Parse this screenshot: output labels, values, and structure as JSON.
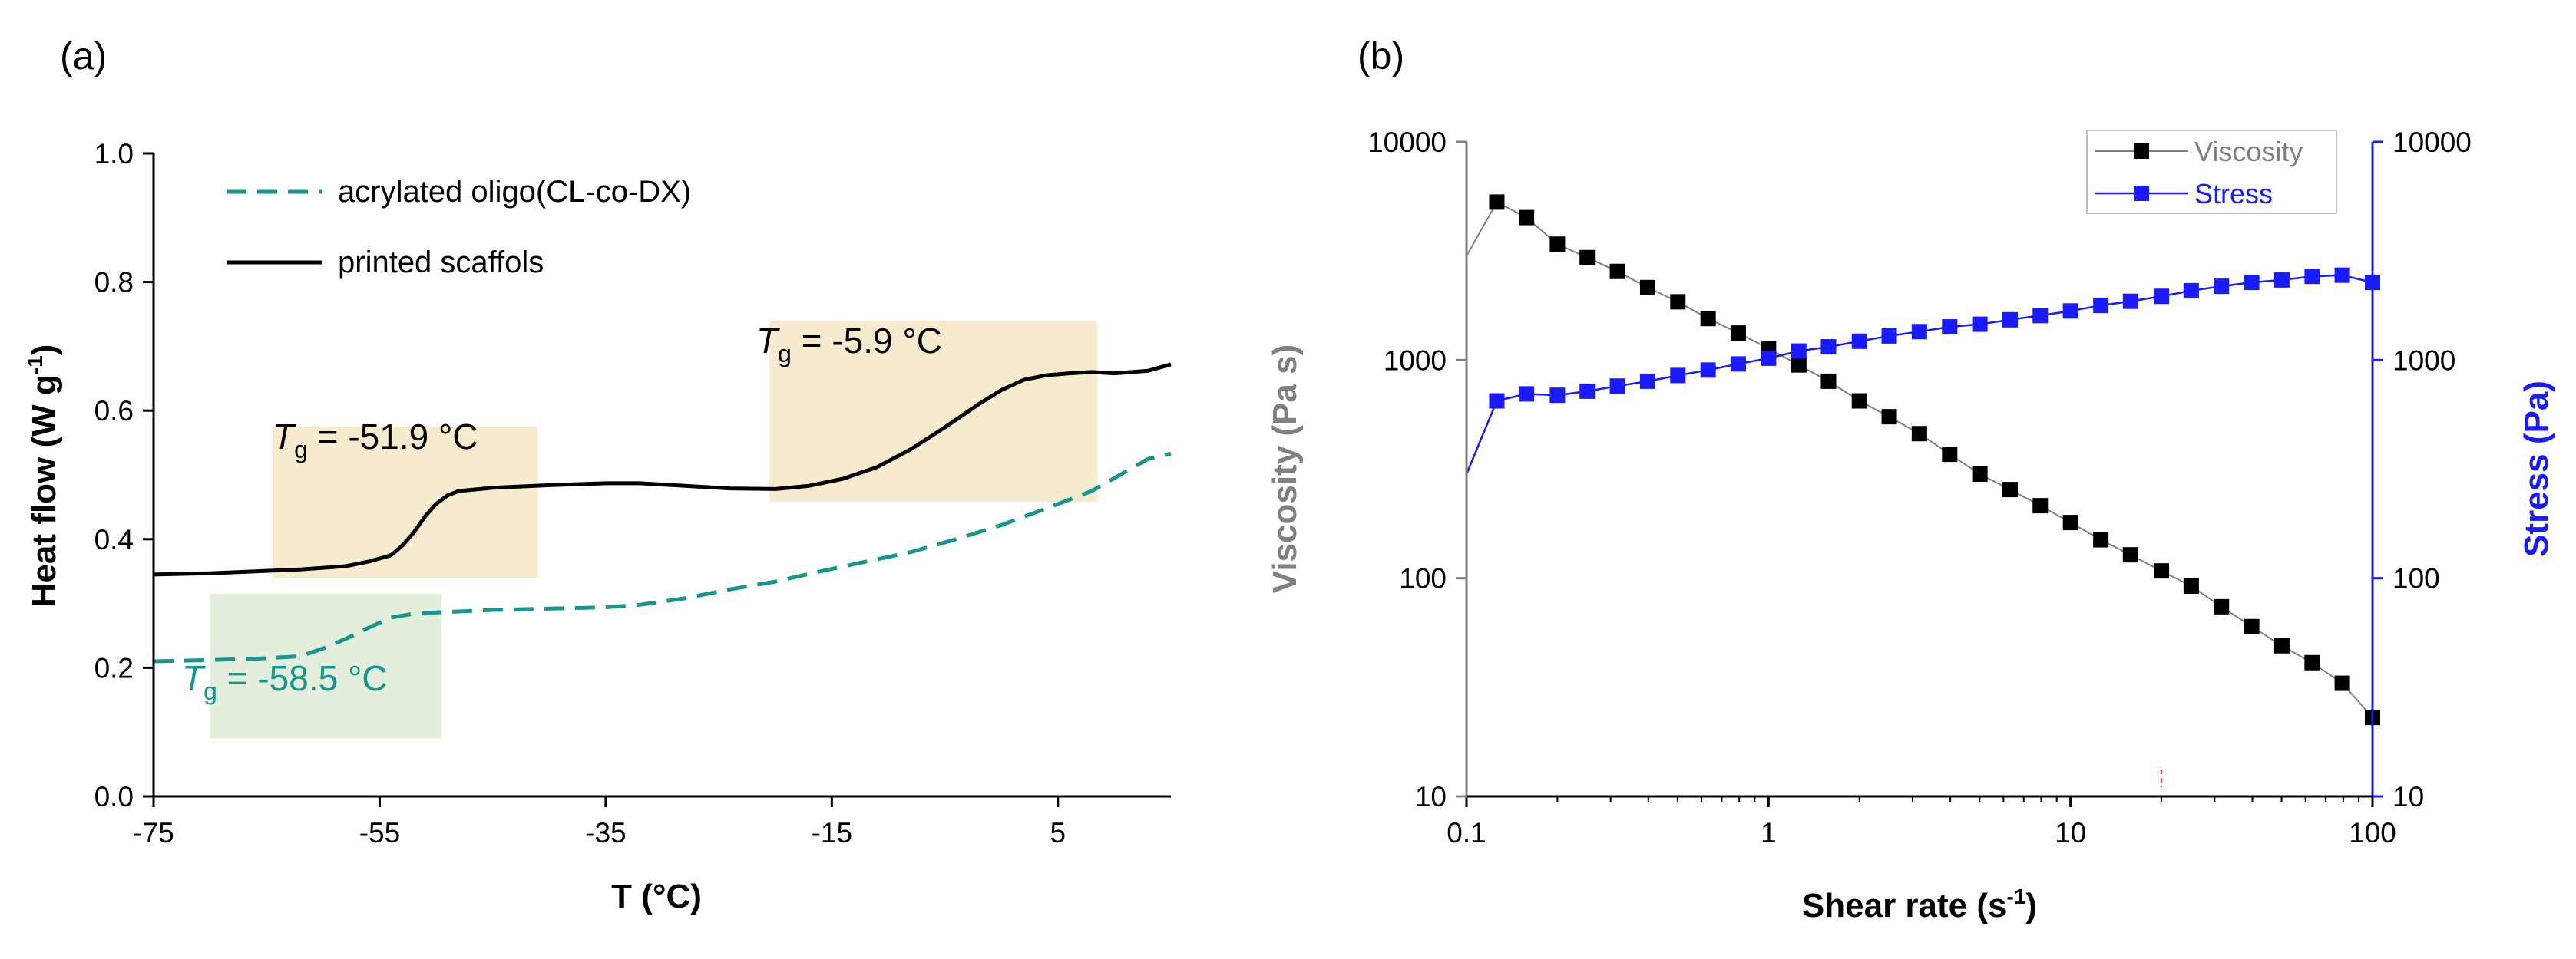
{
  "chart_data": [
    {
      "panel": "(a)",
      "type": "line",
      "xlabel": "T (°C)",
      "ylabel": {
        "main": "Heat flow (W g",
        "sup": "-1",
        "end": ")"
      },
      "xlim": [
        -75,
        15
      ],
      "ylim": [
        0,
        1
      ],
      "xticks": [
        "-75",
        "-55",
        "-35",
        "-15",
        "5"
      ],
      "yticks": [
        "0.0",
        "0.2",
        "0.4",
        "0.6",
        "0.8",
        "1.0"
      ],
      "series": [
        {
          "name": "acrylated oligo(CL-co-DX)",
          "style": "dashed",
          "color": "#16968c",
          "points": [
            [
              -75,
              0.21
            ],
            [
              -70,
              0.212
            ],
            [
              -66,
              0.214
            ],
            [
              -62,
              0.218
            ],
            [
              -60,
              0.23
            ],
            [
              -58,
              0.245
            ],
            [
              -56,
              0.262
            ],
            [
              -54,
              0.278
            ],
            [
              -52,
              0.284
            ],
            [
              -50,
              0.286
            ],
            [
              -45,
              0.29
            ],
            [
              -40,
              0.292
            ],
            [
              -35,
              0.294
            ],
            [
              -32,
              0.298
            ],
            [
              -28,
              0.308
            ],
            [
              -24,
              0.322
            ],
            [
              -20,
              0.334
            ],
            [
              -16,
              0.35
            ],
            [
              -12,
              0.365
            ],
            [
              -8,
              0.38
            ],
            [
              -4,
              0.4
            ],
            [
              0,
              0.422
            ],
            [
              4,
              0.448
            ],
            [
              8,
              0.475
            ],
            [
              11,
              0.505
            ],
            [
              13,
              0.525
            ],
            [
              15,
              0.533
            ]
          ]
        },
        {
          "name": "printed scaffols",
          "style": "solid",
          "color": "#000000",
          "points": [
            [
              -75,
              0.345
            ],
            [
              -70,
              0.347
            ],
            [
              -66,
              0.35
            ],
            [
              -62,
              0.353
            ],
            [
              -58,
              0.358
            ],
            [
              -56,
              0.365
            ],
            [
              -54,
              0.375
            ],
            [
              -53,
              0.39
            ],
            [
              -52,
              0.41
            ],
            [
              -51,
              0.435
            ],
            [
              -50,
              0.455
            ],
            [
              -49,
              0.468
            ],
            [
              -48,
              0.475
            ],
            [
              -45,
              0.48
            ],
            [
              -40,
              0.484
            ],
            [
              -35,
              0.487
            ],
            [
              -32,
              0.487
            ],
            [
              -28,
              0.483
            ],
            [
              -24,
              0.479
            ],
            [
              -20,
              0.478
            ],
            [
              -17,
              0.483
            ],
            [
              -14,
              0.494
            ],
            [
              -11,
              0.512
            ],
            [
              -8,
              0.54
            ],
            [
              -5,
              0.574
            ],
            [
              -2,
              0.61
            ],
            [
              0,
              0.632
            ],
            [
              2,
              0.648
            ],
            [
              4,
              0.655
            ],
            [
              6,
              0.658
            ],
            [
              8,
              0.66
            ],
            [
              10,
              0.658
            ],
            [
              13,
              0.662
            ],
            [
              15,
              0.672
            ]
          ]
        }
      ],
      "annotations": [
        {
          "prefix": "T",
          "sub": "g",
          "text": " = -51.9 °C",
          "color": "#000000",
          "box_color": "#f7ebcf",
          "box_x": [
            -64.5,
            -41
          ],
          "box_y": [
            0.34,
            0.575
          ]
        },
        {
          "prefix": "T",
          "sub": "g",
          "text": " = -5.9 °C",
          "color": "#000000",
          "box_color": "#f7ebcf",
          "box_x": [
            -20.5,
            8.5
          ],
          "box_y": [
            0.458,
            0.74
          ]
        },
        {
          "prefix": "T",
          "sub": "g",
          "text": " = -58.5 °C",
          "color": "#16968c",
          "box_color": "#e3eedd",
          "box_x": [
            -70,
            -49.5
          ],
          "box_y": [
            0.09,
            0.315
          ]
        }
      ],
      "legend_position": "top-left"
    },
    {
      "panel": "(b)",
      "type": "scatter",
      "xlabel": {
        "main": "Shear rate (s",
        "sup": "-1",
        "end": ")"
      },
      "ylabel_left": "Viscosity (Pa s)",
      "ylabel_right": "Stress (Pa)",
      "x_scale": "log",
      "y_scale": "log",
      "xlim": [
        0.1,
        100
      ],
      "ylim_left": [
        10,
        10000
      ],
      "ylim_right": [
        10,
        10000
      ],
      "xticks": [
        "0.1",
        "1",
        "10",
        "100"
      ],
      "yticks_left": [
        "10",
        "100",
        "1000",
        "10000"
      ],
      "yticks_right": [
        "10",
        "100",
        "1000",
        "10000"
      ],
      "left_axis_color": "#808080",
      "right_axis_color": "#1a1aff",
      "series": [
        {
          "name": "Viscosity",
          "axis": "left",
          "color": "#000000",
          "line_color": "#7f7f7f",
          "line_start": [
            0.1,
            3000
          ],
          "x": [
            0.126,
            0.158,
            0.2,
            0.251,
            0.316,
            0.398,
            0.501,
            0.631,
            0.794,
            1.0,
            1.26,
            1.58,
            2.0,
            2.51,
            3.16,
            3.98,
            5.01,
            6.31,
            7.94,
            10.0,
            12.6,
            15.8,
            20.0,
            25.1,
            31.6,
            39.8,
            50.1,
            63.1,
            79.4,
            100.0
          ],
          "values": [
            5300,
            4500,
            3400,
            2950,
            2550,
            2150,
            1850,
            1550,
            1330,
            1130,
            950,
            800,
            650,
            550,
            460,
            370,
            300,
            255,
            215,
            180,
            150,
            128,
            108,
            92,
            74,
            60,
            49,
            41,
            33,
            23
          ]
        },
        {
          "name": "Stress",
          "axis": "right",
          "color": "#1a1aff",
          "line_color": "#1a1aff",
          "line_start": [
            0.1,
            300
          ],
          "x": [
            0.126,
            0.158,
            0.2,
            0.251,
            0.316,
            0.398,
            0.501,
            0.631,
            0.794,
            1.0,
            1.26,
            1.58,
            2.0,
            2.51,
            3.16,
            3.98,
            5.01,
            6.31,
            7.94,
            10.0,
            12.6,
            15.8,
            20.0,
            25.1,
            31.6,
            39.8,
            50.1,
            63.1,
            79.4,
            100.0
          ],
          "values": [
            650,
            700,
            690,
            720,
            760,
            800,
            850,
            900,
            960,
            1020,
            1100,
            1150,
            1220,
            1290,
            1350,
            1420,
            1460,
            1530,
            1600,
            1680,
            1780,
            1860,
            1960,
            2080,
            2180,
            2270,
            2330,
            2420,
            2450,
            2270
          ]
        }
      ],
      "marker": {
        "x": 20
      },
      "legend_position": "top-right"
    }
  ]
}
